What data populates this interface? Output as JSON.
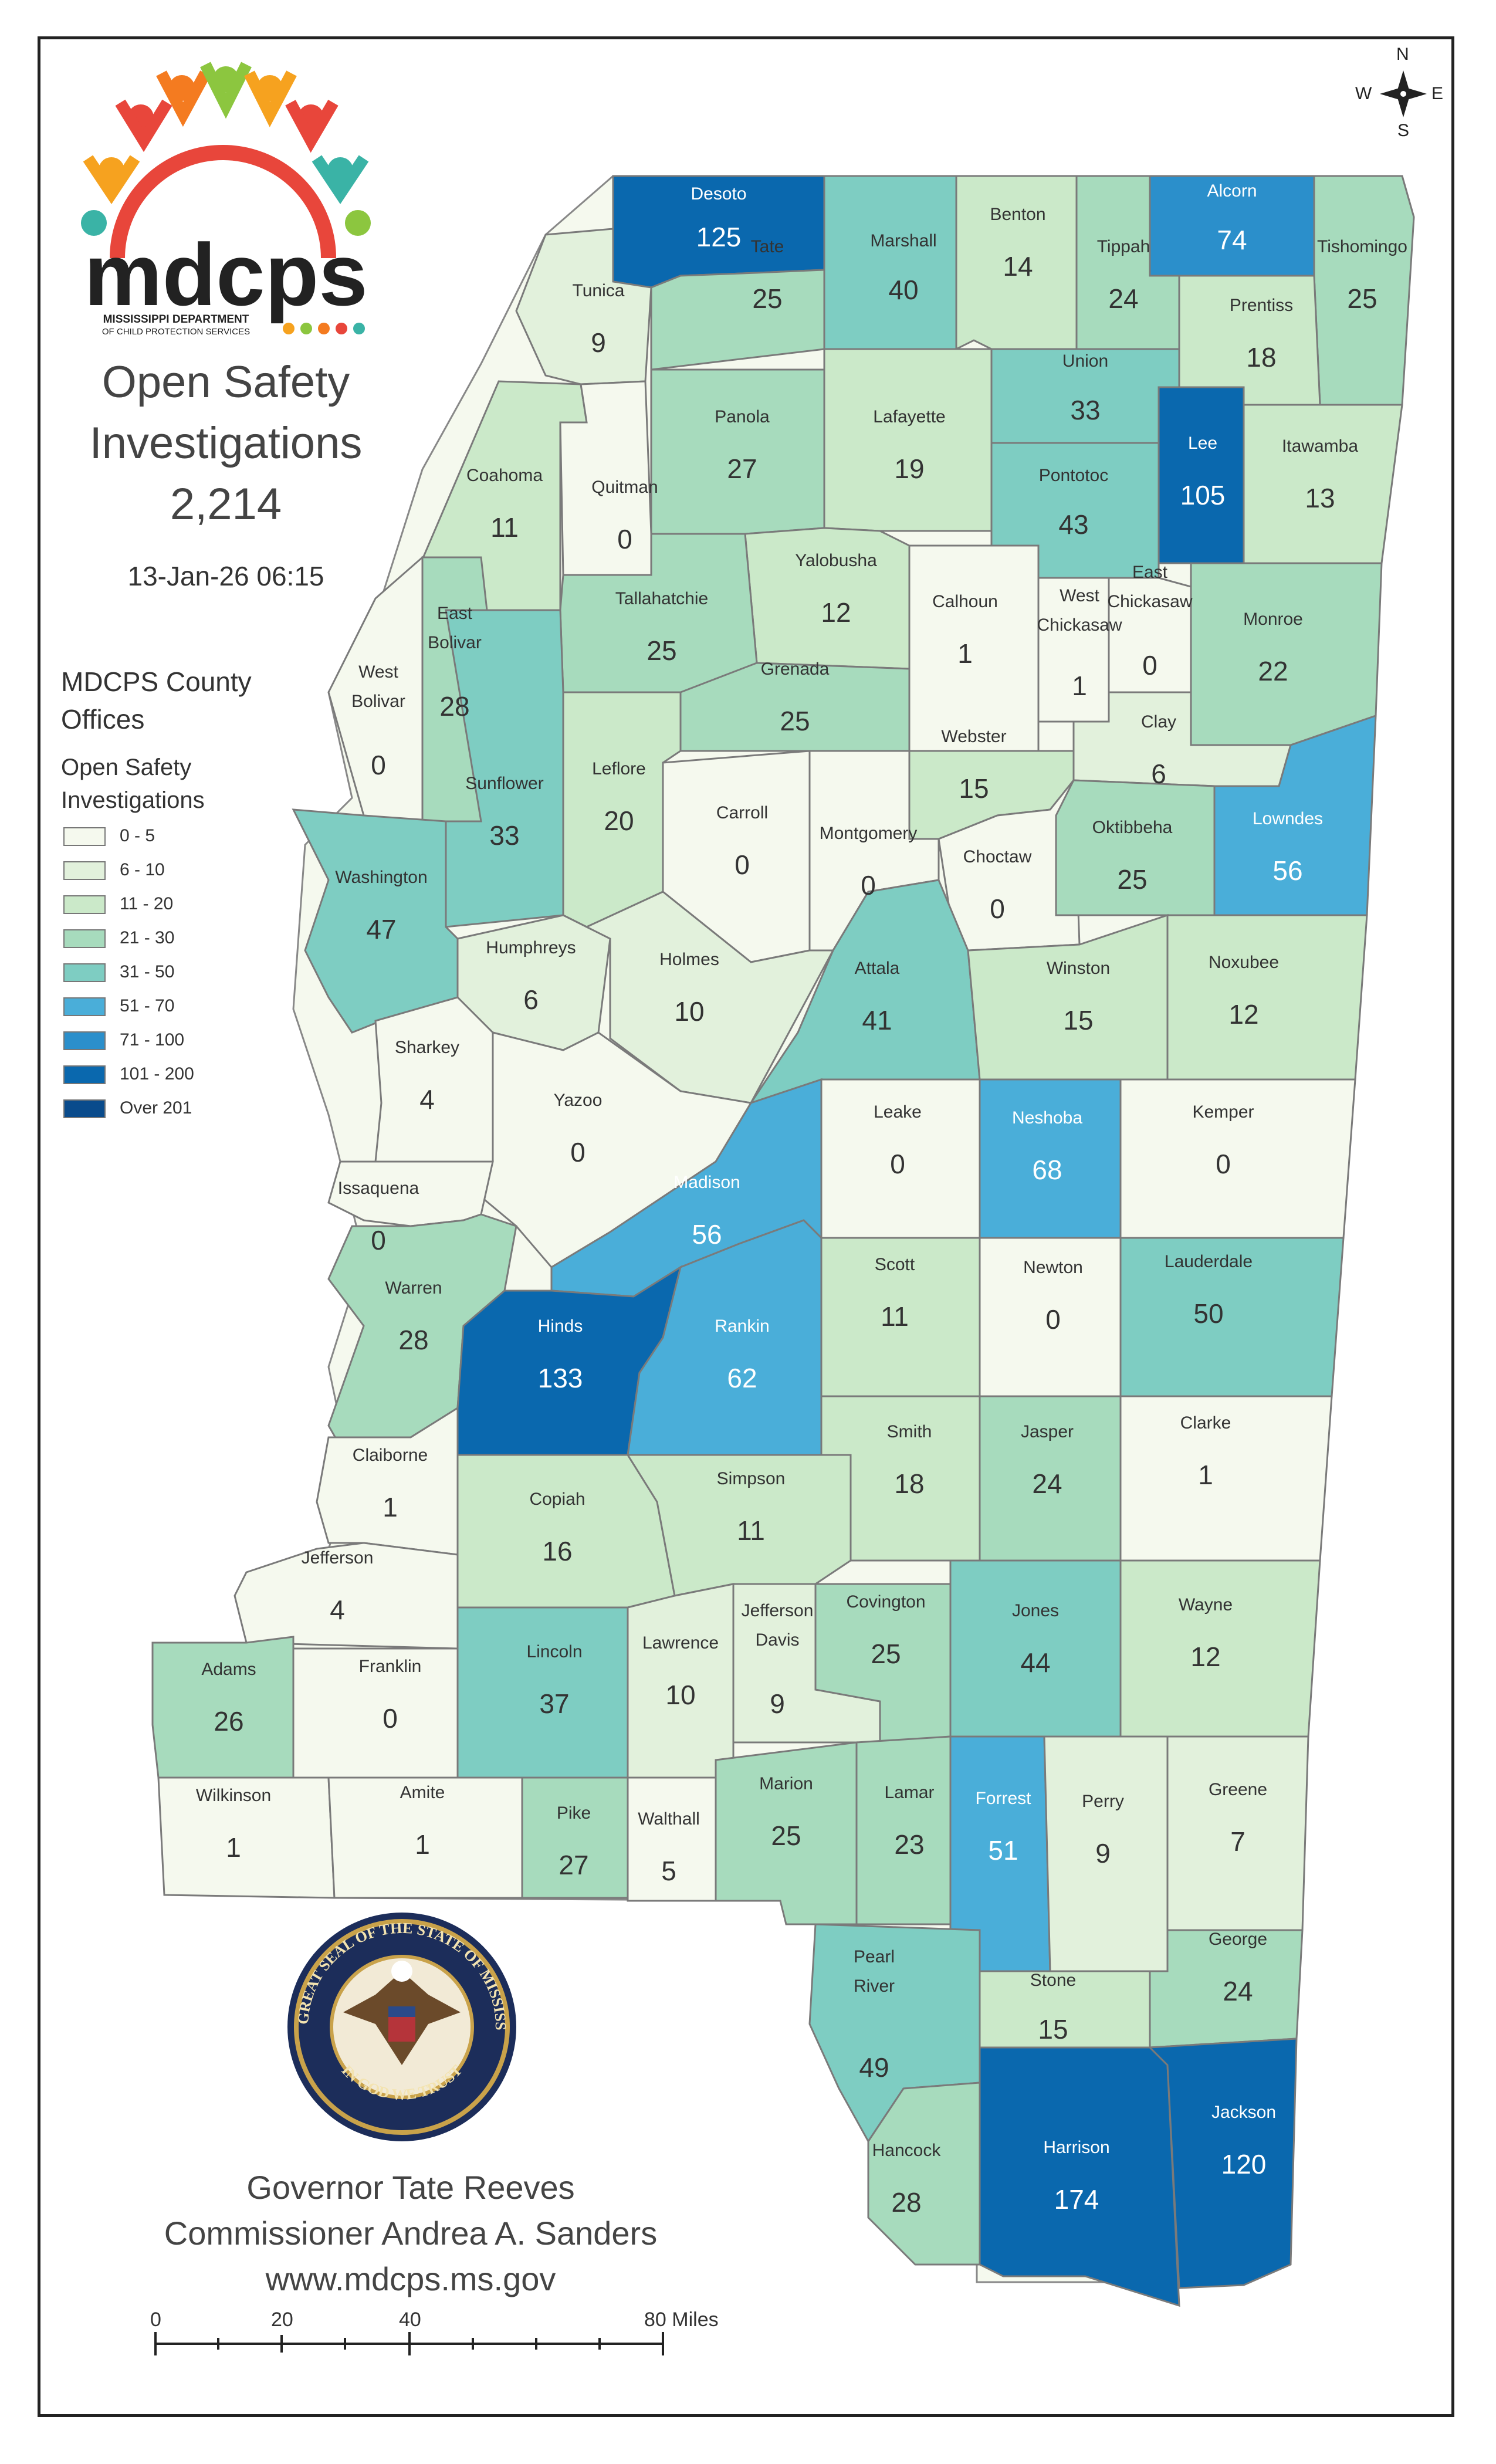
{
  "header": {
    "logo_text": "mdcps",
    "logo_subtitle_1": "MISSISSIPPI DEPARTMENT",
    "logo_subtitle_2": "OF CHILD PROTECTION SERVICES",
    "title_line1": "Open Safety",
    "title_line2": "Investigations",
    "total": "2,214",
    "timestamp": "13-Jan-26 06:15"
  },
  "legend": {
    "heading": "MDCPS County Offices",
    "heading_line1": "MDCPS County",
    "heading_line2": "Offices",
    "subheading_line1": "Open Safety",
    "subheading_line2": "Investigations",
    "classes": [
      {
        "label": "0 - 5",
        "color": "#f5f9ee"
      },
      {
        "label": "6 - 10",
        "color": "#e2f1dc"
      },
      {
        "label": "11 - 20",
        "color": "#cbe9c9"
      },
      {
        "label": "21 - 30",
        "color": "#a7dbbd"
      },
      {
        "label": "31 - 50",
        "color": "#7ecdc2"
      },
      {
        "label": "51 - 70",
        "color": "#4aaed9"
      },
      {
        "label": "71 - 100",
        "color": "#2b8fcb"
      },
      {
        "label": "101 - 200",
        "color": "#0a68ae"
      },
      {
        "label": "Over 201",
        "color": "#094b8c"
      }
    ]
  },
  "counties": [
    {
      "name": "Desoto",
      "value": 125
    },
    {
      "name": "Marshall",
      "value": 40
    },
    {
      "name": "Benton",
      "value": 14
    },
    {
      "name": "Tippah",
      "value": 24
    },
    {
      "name": "Alcorn",
      "value": 74
    },
    {
      "name": "Tishomingo",
      "value": 25
    },
    {
      "name": "Tunica",
      "value": 9
    },
    {
      "name": "Tate",
      "value": 25
    },
    {
      "name": "Prentiss",
      "value": 18
    },
    {
      "name": "Union",
      "value": 33
    },
    {
      "name": "Panola",
      "value": 27
    },
    {
      "name": "Lafayette",
      "value": 19
    },
    {
      "name": "Lee",
      "value": 105
    },
    {
      "name": "Itawamba",
      "value": 13
    },
    {
      "name": "Coahoma",
      "value": 11
    },
    {
      "name": "Quitman",
      "value": 0
    },
    {
      "name": "Pontotoc",
      "value": 43
    },
    {
      "name": "Yalobusha",
      "value": 12
    },
    {
      "name": "Calhoun",
      "value": 1
    },
    {
      "name": "West Chickasaw",
      "value": 1
    },
    {
      "name": "East Chickasaw",
      "value": 0
    },
    {
      "name": "Monroe",
      "value": 22
    },
    {
      "name": "Tallahatchie",
      "value": 25
    },
    {
      "name": "East Bolivar",
      "value": 28
    },
    {
      "name": "West Bolivar",
      "value": 0
    },
    {
      "name": "Grenada",
      "value": 25
    },
    {
      "name": "Clay",
      "value": 6
    },
    {
      "name": "Webster",
      "value": 15
    },
    {
      "name": "Sunflower",
      "value": 33
    },
    {
      "name": "Leflore",
      "value": 20
    },
    {
      "name": "Carroll",
      "value": 0
    },
    {
      "name": "Montgomery",
      "value": 0
    },
    {
      "name": "Choctaw",
      "value": 0
    },
    {
      "name": "Oktibbeha",
      "value": 25
    },
    {
      "name": "Lowndes",
      "value": 56
    },
    {
      "name": "Washington",
      "value": 47
    },
    {
      "name": "Humphreys",
      "value": 6
    },
    {
      "name": "Holmes",
      "value": 10
    },
    {
      "name": "Attala",
      "value": 41
    },
    {
      "name": "Winston",
      "value": 15
    },
    {
      "name": "Noxubee",
      "value": 12
    },
    {
      "name": "Sharkey",
      "value": 4
    },
    {
      "name": "Yazoo",
      "value": 0
    },
    {
      "name": "Leake",
      "value": 0
    },
    {
      "name": "Neshoba",
      "value": 68
    },
    {
      "name": "Kemper",
      "value": 0
    },
    {
      "name": "Issaquena",
      "value": 0
    },
    {
      "name": "Madison",
      "value": 56
    },
    {
      "name": "Scott",
      "value": 11
    },
    {
      "name": "Newton",
      "value": 0
    },
    {
      "name": "Lauderdale",
      "value": 50
    },
    {
      "name": "Warren",
      "value": 28
    },
    {
      "name": "Hinds",
      "value": 133
    },
    {
      "name": "Rankin",
      "value": 62
    },
    {
      "name": "Smith",
      "value": 18
    },
    {
      "name": "Jasper",
      "value": 24
    },
    {
      "name": "Clarke",
      "value": 1
    },
    {
      "name": "Claiborne",
      "value": 1
    },
    {
      "name": "Copiah",
      "value": 16
    },
    {
      "name": "Simpson",
      "value": 11
    },
    {
      "name": "Jefferson",
      "value": 4
    },
    {
      "name": "Adams",
      "value": 26
    },
    {
      "name": "Franklin",
      "value": 0
    },
    {
      "name": "Lincoln",
      "value": 37
    },
    {
      "name": "Lawrence",
      "value": 10
    },
    {
      "name": "Jefferson Davis",
      "value": 9
    },
    {
      "name": "Covington",
      "value": 25
    },
    {
      "name": "Jones",
      "value": 44
    },
    {
      "name": "Wayne",
      "value": 12
    },
    {
      "name": "Wilkinson",
      "value": 1
    },
    {
      "name": "Amite",
      "value": 1
    },
    {
      "name": "Pike",
      "value": 27
    },
    {
      "name": "Walthall",
      "value": 5
    },
    {
      "name": "Marion",
      "value": 25
    },
    {
      "name": "Lamar",
      "value": 23
    },
    {
      "name": "Forrest",
      "value": 51
    },
    {
      "name": "Perry",
      "value": 9
    },
    {
      "name": "Greene",
      "value": 7
    },
    {
      "name": "Stone",
      "value": 15
    },
    {
      "name": "George",
      "value": 24
    },
    {
      "name": "Pearl River",
      "value": 49
    },
    {
      "name": "Hancock",
      "value": 28
    },
    {
      "name": "Harrison",
      "value": 174
    },
    {
      "name": "Jackson",
      "value": 120
    }
  ],
  "seal": {
    "outer_text": "THE GREAT SEAL OF THE STATE OF MISSISSIPPI",
    "motto": "IN GOD WE TRUST"
  },
  "footer": {
    "governor": "Governor Tate Reeves",
    "commissioner": "Commissioner Andrea A. Sanders",
    "website": "www.mdcps.ms.gov"
  },
  "scale_bar": {
    "labels": [
      "0",
      "20",
      "40",
      "80 Miles"
    ]
  },
  "compass": {
    "n": "N",
    "s": "S",
    "e": "E",
    "w": "W"
  }
}
